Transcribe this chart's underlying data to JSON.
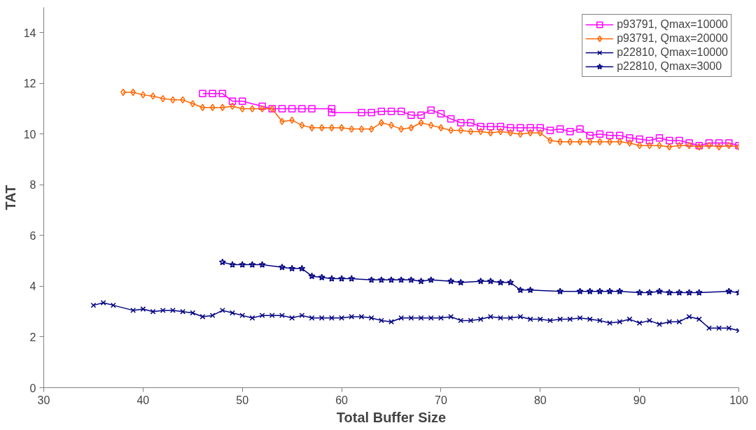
{
  "chart_data": {
    "type": "line",
    "xlabel": "Total Buffer Size",
    "ylabel": "TAT",
    "xlim": [
      30,
      100
    ],
    "ylim": [
      0,
      15
    ],
    "xticks": [
      30,
      40,
      50,
      60,
      70,
      80,
      90,
      100
    ],
    "yticks": [
      0,
      2,
      4,
      6,
      8,
      10,
      12,
      14
    ],
    "grid": false,
    "legend": "top right",
    "line_style": "solid",
    "series": [
      {
        "name": "p93791, Qmax=10000",
        "color": "#ff00ff",
        "marker": "square",
        "x": [
          46,
          47,
          48,
          49,
          50,
          52,
          53,
          54,
          55,
          56,
          57,
          59,
          59,
          62,
          63,
          64,
          65,
          66,
          67,
          68,
          69,
          70,
          71,
          72,
          73,
          74,
          75,
          76,
          77,
          78,
          79,
          80,
          81,
          82,
          83,
          84,
          85,
          86,
          87,
          88,
          89,
          90,
          91,
          92,
          93,
          94,
          95,
          96,
          97,
          98,
          99,
          100
        ],
        "values": [
          11.6,
          11.6,
          11.6,
          11.3,
          11.3,
          11.1,
          11.0,
          11.0,
          11.0,
          11.0,
          11.0,
          11.0,
          10.85,
          10.85,
          10.85,
          10.9,
          10.9,
          10.9,
          10.75,
          10.75,
          10.95,
          10.8,
          10.6,
          10.45,
          10.45,
          10.3,
          10.3,
          10.3,
          10.25,
          10.25,
          10.25,
          10.25,
          10.15,
          10.2,
          10.1,
          10.2,
          9.95,
          10.0,
          9.95,
          9.95,
          9.85,
          9.8,
          9.75,
          9.85,
          9.75,
          9.75,
          9.65,
          9.55,
          9.65,
          9.65,
          9.65,
          9.55
        ]
      },
      {
        "name": "p93791, Qmax=20000",
        "color": "#ff6600",
        "marker": "diamond",
        "x": [
          38,
          39,
          40,
          41,
          42,
          43,
          44,
          45,
          46,
          47,
          48,
          49,
          50,
          51,
          52,
          53,
          54,
          55,
          56,
          57,
          58,
          59,
          60,
          61,
          62,
          63,
          64,
          65,
          66,
          67,
          68,
          69,
          70,
          71,
          72,
          73,
          74,
          75,
          76,
          77,
          78,
          79,
          80,
          81,
          82,
          83,
          84,
          85,
          86,
          87,
          88,
          89,
          90,
          91,
          92,
          93,
          94,
          95,
          96,
          97,
          98,
          99,
          100
        ],
        "values": [
          11.65,
          11.65,
          11.55,
          11.5,
          11.4,
          11.35,
          11.35,
          11.2,
          11.05,
          11.05,
          11.05,
          11.1,
          11.0,
          11.0,
          11.0,
          11.0,
          10.5,
          10.55,
          10.35,
          10.25,
          10.25,
          10.25,
          10.25,
          10.2,
          10.2,
          10.2,
          10.45,
          10.35,
          10.2,
          10.25,
          10.45,
          10.35,
          10.25,
          10.15,
          10.15,
          10.1,
          10.1,
          10.05,
          10.1,
          10.05,
          10.0,
          10.05,
          10.05,
          9.75,
          9.7,
          9.7,
          9.7,
          9.7,
          9.7,
          9.7,
          9.7,
          9.65,
          9.55,
          9.55,
          9.55,
          9.5,
          9.55,
          9.55,
          9.5,
          9.55,
          9.5,
          9.55,
          9.5
        ]
      },
      {
        "name": "p22810, Qmax=10000",
        "color": "#000080",
        "marker": "cross",
        "x": [
          35,
          36,
          37,
          39,
          40,
          41,
          42,
          43,
          44,
          45,
          46,
          47,
          48,
          49,
          50,
          51,
          52,
          53,
          54,
          55,
          56,
          57,
          58,
          59,
          60,
          61,
          62,
          63,
          64,
          65,
          66,
          67,
          68,
          69,
          70,
          71,
          72,
          73,
          74,
          75,
          76,
          77,
          78,
          79,
          80,
          81,
          82,
          83,
          84,
          85,
          86,
          87,
          88,
          89,
          90,
          91,
          92,
          93,
          94,
          95,
          96,
          97,
          98,
          99,
          100
        ],
        "values": [
          3.25,
          3.35,
          3.25,
          3.05,
          3.1,
          3.0,
          3.05,
          3.05,
          3.0,
          2.95,
          2.8,
          2.85,
          3.05,
          2.95,
          2.85,
          2.75,
          2.85,
          2.85,
          2.85,
          2.75,
          2.85,
          2.75,
          2.75,
          2.75,
          2.75,
          2.8,
          2.8,
          2.75,
          2.65,
          2.6,
          2.75,
          2.75,
          2.75,
          2.75,
          2.75,
          2.8,
          2.65,
          2.65,
          2.7,
          2.8,
          2.75,
          2.75,
          2.8,
          2.7,
          2.7,
          2.65,
          2.7,
          2.7,
          2.75,
          2.7,
          2.65,
          2.55,
          2.6,
          2.7,
          2.55,
          2.65,
          2.5,
          2.6,
          2.6,
          2.8,
          2.7,
          2.35,
          2.35,
          2.35,
          2.25
        ]
      },
      {
        "name": "p22810, Qmax=3000",
        "color": "#000080",
        "marker": "star",
        "x": [
          48,
          49,
          50,
          51,
          52,
          54,
          55,
          56,
          57,
          58,
          59,
          60,
          61,
          63,
          64,
          65,
          66,
          67,
          68,
          69,
          71,
          72,
          74,
          75,
          76,
          77,
          78,
          79,
          82,
          84,
          85,
          86,
          87,
          88,
          90,
          91,
          92,
          93,
          94,
          95,
          96,
          99,
          100
        ],
        "values": [
          4.95,
          4.85,
          4.85,
          4.85,
          4.85,
          4.75,
          4.7,
          4.7,
          4.4,
          4.35,
          4.3,
          4.3,
          4.3,
          4.25,
          4.25,
          4.25,
          4.25,
          4.25,
          4.2,
          4.25,
          4.2,
          4.15,
          4.2,
          4.2,
          4.15,
          4.15,
          3.85,
          3.85,
          3.8,
          3.8,
          3.8,
          3.8,
          3.8,
          3.8,
          3.75,
          3.75,
          3.8,
          3.75,
          3.75,
          3.75,
          3.75,
          3.8,
          3.75
        ]
      }
    ]
  }
}
